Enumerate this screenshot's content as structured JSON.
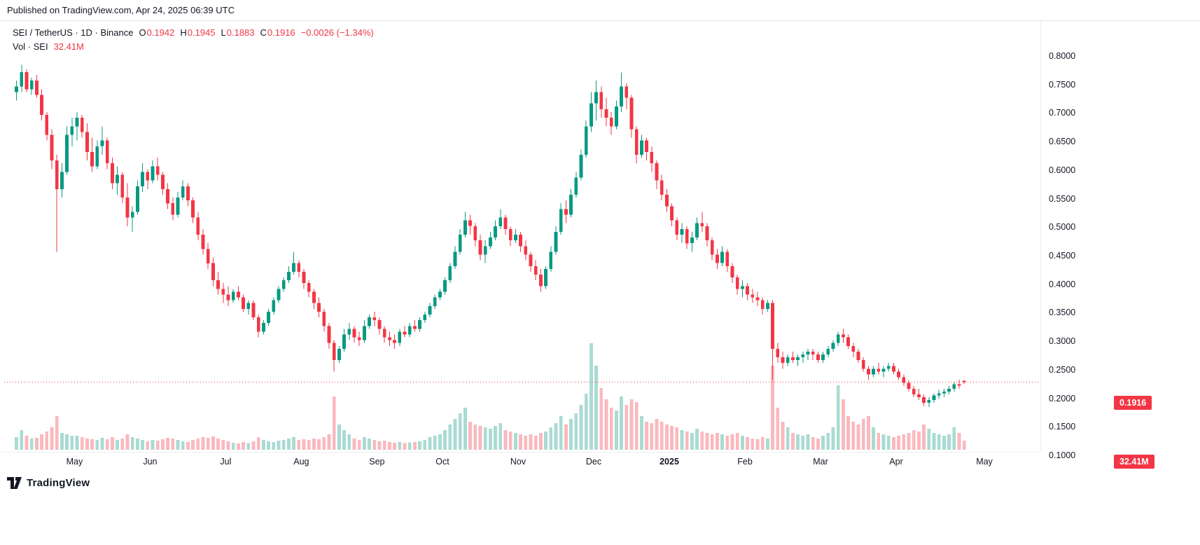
{
  "header": {
    "published_text": "Published on TradingView.com, Apr 24, 2025 06:39 UTC"
  },
  "legend": {
    "symbol_text": "SEI / TetherUS · 1D · Binance",
    "o_label": "O",
    "o_value": "0.1942",
    "h_label": "H",
    "h_value": "0.1945",
    "l_label": "L",
    "l_value": "0.1883",
    "c_label": "C",
    "c_value": "0.1916",
    "change_text": "−0.0026 (−1.34%)",
    "volume_label": "Vol · SEI",
    "volume_value": "32.41M"
  },
  "price_axis": {
    "labels": [
      "0.8000",
      "0.7500",
      "0.7000",
      "0.6500",
      "0.6000",
      "0.5500",
      "0.5000",
      "0.4500",
      "0.4000",
      "0.3500",
      "0.3000",
      "0.2500",
      "0.2000",
      "0.1500",
      "0.1000"
    ],
    "current_price_label": "0.1916"
  },
  "volume_axis": {
    "current_volume_label": "32.41M"
  },
  "time_axis": {
    "ticks": [
      {
        "label": "May",
        "i": 12
      },
      {
        "label": "Jun",
        "i": 27
      },
      {
        "label": "Jul",
        "i": 42
      },
      {
        "label": "Aug",
        "i": 57
      },
      {
        "label": "Sep",
        "i": 72
      },
      {
        "label": "Oct",
        "i": 85
      },
      {
        "label": "Nov",
        "i": 100
      },
      {
        "label": "Dec",
        "i": 115
      },
      {
        "label": "2025",
        "i": 130,
        "bold": true
      },
      {
        "label": "Feb",
        "i": 145
      },
      {
        "label": "Mar",
        "i": 160
      },
      {
        "label": "Apr",
        "i": 175
      },
      {
        "label": "May",
        "i": 192.5
      }
    ]
  },
  "footer": {
    "brand": "TradingView"
  },
  "colors": {
    "up": "#089981",
    "down": "#f23645",
    "volume_up": "rgba(8,153,129,0.35)",
    "volume_down": "rgba(242,54,69,0.35)",
    "text": "#131722",
    "badge_bg": "#f23645",
    "grid_line": "#e0e3eb"
  },
  "chart_data": {
    "type": "candlestick+volume",
    "title": "SEI / TetherUS · 1D · Binance",
    "price_axis_range": [
      0.1,
      0.8
    ],
    "price_axis_step": 0.05,
    "legend_position": "top-left",
    "grid": false,
    "last": {
      "open": 0.1942,
      "high": 0.1945,
      "low": 0.1883,
      "close": 0.1916,
      "change": -0.0026,
      "change_pct": -1.34,
      "volume_m": 32.41
    },
    "candles_format": [
      "open",
      "high",
      "low",
      "close",
      "volume_millions"
    ],
    "candles": [
      [
        0.7,
        0.72,
        0.685,
        0.71,
        45
      ],
      [
        0.71,
        0.748,
        0.7,
        0.735,
        70
      ],
      [
        0.735,
        0.74,
        0.7,
        0.705,
        50
      ],
      [
        0.705,
        0.725,
        0.695,
        0.72,
        40
      ],
      [
        0.72,
        0.73,
        0.69,
        0.695,
        42
      ],
      [
        0.695,
        0.705,
        0.65,
        0.66,
        55
      ],
      [
        0.66,
        0.665,
        0.615,
        0.625,
        65
      ],
      [
        0.625,
        0.635,
        0.565,
        0.58,
        80
      ],
      [
        0.58,
        0.59,
        0.42,
        0.53,
        120
      ],
      [
        0.53,
        0.575,
        0.515,
        0.56,
        60
      ],
      [
        0.56,
        0.64,
        0.555,
        0.625,
        55
      ],
      [
        0.625,
        0.655,
        0.605,
        0.64,
        50
      ],
      [
        0.64,
        0.665,
        0.615,
        0.655,
        50
      ],
      [
        0.655,
        0.66,
        0.62,
        0.63,
        45
      ],
      [
        0.63,
        0.645,
        0.58,
        0.595,
        40
      ],
      [
        0.595,
        0.62,
        0.56,
        0.57,
        38
      ],
      [
        0.57,
        0.615,
        0.565,
        0.605,
        35
      ],
      [
        0.605,
        0.64,
        0.59,
        0.615,
        42
      ],
      [
        0.615,
        0.62,
        0.565,
        0.575,
        38
      ],
      [
        0.575,
        0.585,
        0.53,
        0.54,
        45
      ],
      [
        0.54,
        0.57,
        0.52,
        0.555,
        35
      ],
      [
        0.555,
        0.56,
        0.505,
        0.515,
        40
      ],
      [
        0.515,
        0.54,
        0.465,
        0.48,
        55
      ],
      [
        0.48,
        0.5,
        0.455,
        0.49,
        45
      ],
      [
        0.49,
        0.545,
        0.485,
        0.535,
        40
      ],
      [
        0.535,
        0.575,
        0.525,
        0.56,
        35
      ],
      [
        0.56,
        0.565,
        0.53,
        0.545,
        30
      ],
      [
        0.545,
        0.58,
        0.54,
        0.57,
        35
      ],
      [
        0.57,
        0.585,
        0.545,
        0.555,
        32
      ],
      [
        0.555,
        0.56,
        0.52,
        0.53,
        38
      ],
      [
        0.53,
        0.54,
        0.495,
        0.505,
        42
      ],
      [
        0.505,
        0.515,
        0.475,
        0.485,
        40
      ],
      [
        0.485,
        0.525,
        0.48,
        0.515,
        35
      ],
      [
        0.515,
        0.545,
        0.51,
        0.535,
        30
      ],
      [
        0.535,
        0.54,
        0.5,
        0.51,
        28
      ],
      [
        0.51,
        0.515,
        0.47,
        0.48,
        35
      ],
      [
        0.48,
        0.49,
        0.44,
        0.45,
        40
      ],
      [
        0.45,
        0.46,
        0.415,
        0.425,
        45
      ],
      [
        0.425,
        0.435,
        0.39,
        0.4,
        42
      ],
      [
        0.4,
        0.41,
        0.36,
        0.37,
        48
      ],
      [
        0.37,
        0.385,
        0.345,
        0.355,
        40
      ],
      [
        0.355,
        0.365,
        0.33,
        0.345,
        35
      ],
      [
        0.345,
        0.36,
        0.325,
        0.335,
        30
      ],
      [
        0.335,
        0.355,
        0.33,
        0.35,
        25
      ],
      [
        0.35,
        0.36,
        0.335,
        0.34,
        22
      ],
      [
        0.34,
        0.345,
        0.315,
        0.32,
        28
      ],
      [
        0.32,
        0.335,
        0.31,
        0.33,
        24
      ],
      [
        0.33,
        0.335,
        0.3,
        0.305,
        30
      ],
      [
        0.305,
        0.31,
        0.27,
        0.28,
        45
      ],
      [
        0.28,
        0.3,
        0.275,
        0.295,
        35
      ],
      [
        0.295,
        0.32,
        0.29,
        0.315,
        30
      ],
      [
        0.315,
        0.34,
        0.31,
        0.335,
        28
      ],
      [
        0.335,
        0.36,
        0.33,
        0.355,
        32
      ],
      [
        0.355,
        0.375,
        0.35,
        0.37,
        35
      ],
      [
        0.37,
        0.395,
        0.365,
        0.385,
        40
      ],
      [
        0.385,
        0.42,
        0.38,
        0.4,
        45
      ],
      [
        0.4,
        0.405,
        0.375,
        0.385,
        35
      ],
      [
        0.385,
        0.39,
        0.355,
        0.365,
        38
      ],
      [
        0.365,
        0.37,
        0.34,
        0.35,
        35
      ],
      [
        0.35,
        0.355,
        0.32,
        0.33,
        40
      ],
      [
        0.33,
        0.34,
        0.305,
        0.315,
        38
      ],
      [
        0.315,
        0.32,
        0.28,
        0.29,
        45
      ],
      [
        0.29,
        0.295,
        0.25,
        0.26,
        55
      ],
      [
        0.26,
        0.265,
        0.21,
        0.23,
        190
      ],
      [
        0.23,
        0.255,
        0.225,
        0.25,
        90
      ],
      [
        0.25,
        0.285,
        0.245,
        0.275,
        70
      ],
      [
        0.275,
        0.295,
        0.265,
        0.285,
        55
      ],
      [
        0.285,
        0.29,
        0.26,
        0.27,
        40
      ],
      [
        0.27,
        0.28,
        0.255,
        0.265,
        35
      ],
      [
        0.265,
        0.3,
        0.26,
        0.29,
        45
      ],
      [
        0.29,
        0.31,
        0.285,
        0.305,
        40
      ],
      [
        0.305,
        0.315,
        0.29,
        0.3,
        35
      ],
      [
        0.3,
        0.305,
        0.275,
        0.285,
        30
      ],
      [
        0.285,
        0.29,
        0.26,
        0.27,
        32
      ],
      [
        0.27,
        0.28,
        0.255,
        0.265,
        28
      ],
      [
        0.265,
        0.275,
        0.25,
        0.26,
        25
      ],
      [
        0.26,
        0.285,
        0.255,
        0.28,
        27
      ],
      [
        0.28,
        0.29,
        0.27,
        0.275,
        24
      ],
      [
        0.275,
        0.295,
        0.27,
        0.29,
        26
      ],
      [
        0.29,
        0.3,
        0.28,
        0.285,
        28
      ],
      [
        0.285,
        0.305,
        0.28,
        0.3,
        30
      ],
      [
        0.3,
        0.315,
        0.295,
        0.31,
        35
      ],
      [
        0.31,
        0.33,
        0.305,
        0.325,
        45
      ],
      [
        0.325,
        0.345,
        0.32,
        0.34,
        50
      ],
      [
        0.34,
        0.355,
        0.335,
        0.35,
        55
      ],
      [
        0.35,
        0.375,
        0.345,
        0.37,
        70
      ],
      [
        0.37,
        0.4,
        0.365,
        0.395,
        90
      ],
      [
        0.395,
        0.43,
        0.39,
        0.42,
        110
      ],
      [
        0.42,
        0.46,
        0.415,
        0.45,
        130
      ],
      [
        0.45,
        0.49,
        0.445,
        0.475,
        150
      ],
      [
        0.475,
        0.485,
        0.45,
        0.465,
        100
      ],
      [
        0.465,
        0.47,
        0.43,
        0.44,
        90
      ],
      [
        0.44,
        0.45,
        0.405,
        0.415,
        85
      ],
      [
        0.415,
        0.44,
        0.4,
        0.43,
        80
      ],
      [
        0.43,
        0.455,
        0.425,
        0.445,
        75
      ],
      [
        0.445,
        0.475,
        0.44,
        0.465,
        85
      ],
      [
        0.465,
        0.495,
        0.46,
        0.48,
        95
      ],
      [
        0.48,
        0.485,
        0.45,
        0.46,
        70
      ],
      [
        0.46,
        0.465,
        0.43,
        0.44,
        65
      ],
      [
        0.44,
        0.46,
        0.435,
        0.45,
        60
      ],
      [
        0.45,
        0.455,
        0.42,
        0.43,
        55
      ],
      [
        0.43,
        0.44,
        0.405,
        0.415,
        50
      ],
      [
        0.415,
        0.42,
        0.385,
        0.395,
        55
      ],
      [
        0.395,
        0.405,
        0.37,
        0.38,
        50
      ],
      [
        0.38,
        0.39,
        0.35,
        0.36,
        60
      ],
      [
        0.36,
        0.395,
        0.355,
        0.39,
        65
      ],
      [
        0.39,
        0.43,
        0.385,
        0.42,
        80
      ],
      [
        0.42,
        0.465,
        0.415,
        0.455,
        95
      ],
      [
        0.455,
        0.505,
        0.45,
        0.495,
        120
      ],
      [
        0.495,
        0.51,
        0.47,
        0.485,
        90
      ],
      [
        0.485,
        0.53,
        0.48,
        0.52,
        110
      ],
      [
        0.52,
        0.56,
        0.515,
        0.55,
        130
      ],
      [
        0.55,
        0.6,
        0.545,
        0.59,
        160
      ],
      [
        0.59,
        0.65,
        0.585,
        0.64,
        200
      ],
      [
        0.64,
        0.7,
        0.63,
        0.68,
        380
      ],
      [
        0.68,
        0.72,
        0.65,
        0.7,
        300
      ],
      [
        0.7,
        0.71,
        0.655,
        0.67,
        220
      ],
      [
        0.67,
        0.69,
        0.64,
        0.655,
        180
      ],
      [
        0.655,
        0.665,
        0.625,
        0.64,
        150
      ],
      [
        0.64,
        0.685,
        0.635,
        0.675,
        140
      ],
      [
        0.675,
        0.734,
        0.665,
        0.71,
        190
      ],
      [
        0.71,
        0.715,
        0.67,
        0.69,
        160
      ],
      [
        0.69,
        0.695,
        0.62,
        0.635,
        180
      ],
      [
        0.635,
        0.64,
        0.575,
        0.59,
        170
      ],
      [
        0.59,
        0.625,
        0.585,
        0.615,
        120
      ],
      [
        0.615,
        0.62,
        0.58,
        0.595,
        100
      ],
      [
        0.595,
        0.605,
        0.56,
        0.575,
        95
      ],
      [
        0.575,
        0.58,
        0.53,
        0.545,
        110
      ],
      [
        0.545,
        0.555,
        0.51,
        0.52,
        100
      ],
      [
        0.52,
        0.53,
        0.49,
        0.5,
        90
      ],
      [
        0.5,
        0.505,
        0.465,
        0.475,
        85
      ],
      [
        0.475,
        0.48,
        0.44,
        0.45,
        80
      ],
      [
        0.45,
        0.47,
        0.435,
        0.46,
        70
      ],
      [
        0.46,
        0.465,
        0.425,
        0.435,
        65
      ],
      [
        0.435,
        0.455,
        0.42,
        0.445,
        60
      ],
      [
        0.445,
        0.48,
        0.44,
        0.47,
        75
      ],
      [
        0.47,
        0.49,
        0.455,
        0.465,
        65
      ],
      [
        0.465,
        0.47,
        0.43,
        0.44,
        60
      ],
      [
        0.44,
        0.445,
        0.405,
        0.415,
        55
      ],
      [
        0.415,
        0.425,
        0.39,
        0.4,
        60
      ],
      [
        0.4,
        0.43,
        0.395,
        0.42,
        55
      ],
      [
        0.42,
        0.425,
        0.385,
        0.395,
        50
      ],
      [
        0.395,
        0.4,
        0.365,
        0.375,
        55
      ],
      [
        0.375,
        0.38,
        0.345,
        0.355,
        60
      ],
      [
        0.355,
        0.37,
        0.34,
        0.36,
        50
      ],
      [
        0.36,
        0.365,
        0.335,
        0.345,
        45
      ],
      [
        0.345,
        0.355,
        0.33,
        0.34,
        40
      ],
      [
        0.34,
        0.35,
        0.325,
        0.335,
        38
      ],
      [
        0.335,
        0.34,
        0.31,
        0.32,
        45
      ],
      [
        0.32,
        0.335,
        0.315,
        0.33,
        40
      ],
      [
        0.33,
        0.335,
        0.195,
        0.25,
        300
      ],
      [
        0.25,
        0.26,
        0.225,
        0.235,
        150
      ],
      [
        0.235,
        0.245,
        0.215,
        0.225,
        100
      ],
      [
        0.225,
        0.24,
        0.22,
        0.235,
        80
      ],
      [
        0.235,
        0.245,
        0.225,
        0.23,
        60
      ],
      [
        0.23,
        0.24,
        0.22,
        0.235,
        55
      ],
      [
        0.235,
        0.245,
        0.225,
        0.24,
        50
      ],
      [
        0.24,
        0.25,
        0.23,
        0.245,
        55
      ],
      [
        0.245,
        0.25,
        0.23,
        0.24,
        45
      ],
      [
        0.24,
        0.245,
        0.225,
        0.23,
        40
      ],
      [
        0.23,
        0.245,
        0.225,
        0.24,
        50
      ],
      [
        0.24,
        0.255,
        0.235,
        0.25,
        60
      ],
      [
        0.25,
        0.265,
        0.245,
        0.26,
        80
      ],
      [
        0.26,
        0.28,
        0.255,
        0.275,
        230
      ],
      [
        0.275,
        0.285,
        0.26,
        0.27,
        180
      ],
      [
        0.27,
        0.275,
        0.25,
        0.255,
        120
      ],
      [
        0.255,
        0.26,
        0.235,
        0.245,
        100
      ],
      [
        0.245,
        0.25,
        0.225,
        0.23,
        90
      ],
      [
        0.23,
        0.235,
        0.21,
        0.215,
        110
      ],
      [
        0.215,
        0.22,
        0.195,
        0.205,
        120
      ],
      [
        0.205,
        0.22,
        0.2,
        0.215,
        80
      ],
      [
        0.215,
        0.225,
        0.205,
        0.21,
        60
      ],
      [
        0.21,
        0.22,
        0.2,
        0.215,
        55
      ],
      [
        0.215,
        0.225,
        0.21,
        0.22,
        50
      ],
      [
        0.22,
        0.225,
        0.205,
        0.21,
        45
      ],
      [
        0.21,
        0.215,
        0.195,
        0.2,
        50
      ],
      [
        0.2,
        0.205,
        0.185,
        0.19,
        55
      ],
      [
        0.19,
        0.195,
        0.175,
        0.18,
        60
      ],
      [
        0.18,
        0.185,
        0.165,
        0.17,
        70
      ],
      [
        0.17,
        0.18,
        0.16,
        0.165,
        65
      ],
      [
        0.165,
        0.17,
        0.15,
        0.155,
        90
      ],
      [
        0.155,
        0.165,
        0.148,
        0.16,
        75
      ],
      [
        0.16,
        0.172,
        0.155,
        0.168,
        60
      ],
      [
        0.168,
        0.178,
        0.162,
        0.172,
        55
      ],
      [
        0.172,
        0.18,
        0.165,
        0.175,
        50
      ],
      [
        0.175,
        0.185,
        0.17,
        0.18,
        55
      ],
      [
        0.18,
        0.192,
        0.175,
        0.188,
        80
      ],
      [
        0.188,
        0.196,
        0.18,
        0.185,
        60
      ],
      [
        0.1942,
        0.1945,
        0.1883,
        0.1916,
        32.41
      ]
    ]
  }
}
